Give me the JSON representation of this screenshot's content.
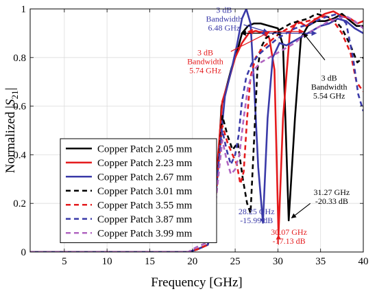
{
  "chart_data": {
    "type": "line",
    "title": "",
    "xlabel": "Frequency [GHz]",
    "ylabel_prefix": "Normalized |",
    "ylabel_sym": "S",
    "ylabel_sub": "21",
    "ylabel_suffix": "|",
    "xlim": [
      1,
      40
    ],
    "ylim": [
      0,
      1
    ],
    "xticks": [
      5,
      10,
      15,
      20,
      25,
      30,
      35,
      40
    ],
    "yticks": [
      0,
      0.2,
      0.4,
      0.6,
      0.8,
      1
    ],
    "ytick_labels": [
      "0",
      "0.2",
      "0.4",
      "0.6",
      "0.8",
      "1"
    ],
    "grid": true,
    "legend_position": "bottom-left",
    "series": [
      {
        "name": "Copper Patch 2.05 mm",
        "color": "#000000",
        "dash": "solid",
        "x": [
          1,
          19.5,
          20.5,
          21.8,
          22.5,
          23.0,
          23.4,
          24.0,
          24.6,
          25.2,
          25.8,
          26.5,
          27.2,
          28.0,
          29.0,
          30.0,
          30.6,
          31.27,
          32.0,
          32.7,
          33.5,
          34.5,
          35.5,
          36.5,
          37.5,
          38.5,
          39.2,
          40
        ],
        "y": [
          0,
          0,
          0.01,
          0.03,
          0.12,
          0.36,
          0.6,
          0.68,
          0.76,
          0.82,
          0.9,
          0.93,
          0.94,
          0.94,
          0.93,
          0.92,
          0.85,
          0.13,
          0.55,
          0.88,
          0.93,
          0.95,
          0.95,
          0.96,
          0.98,
          0.95,
          0.93,
          0.93
        ]
      },
      {
        "name": "Copper Patch 2.23 mm",
        "color": "#e41a1c",
        "dash": "solid",
        "x": [
          1,
          19.5,
          20.5,
          21.8,
          22.5,
          23.0,
          23.5,
          24.2,
          25.0,
          25.8,
          26.6,
          27.4,
          28.2,
          29.0,
          29.6,
          30.07,
          30.6,
          31.4,
          32.3,
          33.3,
          34.5,
          35.5,
          36.5,
          37.5,
          38.5,
          39.3,
          40
        ],
        "y": [
          0,
          0,
          0.01,
          0.03,
          0.13,
          0.4,
          0.62,
          0.7,
          0.8,
          0.86,
          0.9,
          0.91,
          0.9,
          0.88,
          0.75,
          0.07,
          0.55,
          0.9,
          0.95,
          0.93,
          0.96,
          0.98,
          0.99,
          0.97,
          0.96,
          0.94,
          0.95
        ]
      },
      {
        "name": "Copper Patch 2.67 mm",
        "color": "#3a3aa8",
        "dash": "solid",
        "x": [
          1,
          19.5,
          20.5,
          21.8,
          22.5,
          23.2,
          23.8,
          24.5,
          25.2,
          25.8,
          26.3,
          26.8,
          27.2,
          27.7,
          28.25,
          28.8,
          29.4,
          30.2,
          31.0,
          32.0,
          33.0,
          34.0,
          35.0,
          36.0,
          37.0,
          38.0,
          39.0,
          40
        ],
        "y": [
          0,
          0,
          0.01,
          0.03,
          0.14,
          0.42,
          0.64,
          0.74,
          0.85,
          0.96,
          1.0,
          0.94,
          0.7,
          0.35,
          0.12,
          0.55,
          0.8,
          0.86,
          0.85,
          0.87,
          0.89,
          0.91,
          0.93,
          0.94,
          0.96,
          0.95,
          0.92,
          0.9
        ]
      },
      {
        "name": "Copper Patch 3.01 mm",
        "color": "#000000",
        "dash": "dashed",
        "x": [
          1,
          19.5,
          20.5,
          21.8,
          22.5,
          23.0,
          23.5,
          24.1,
          24.7,
          25.3,
          25.9,
          26.4,
          26.8,
          27.2,
          27.6,
          28.0,
          28.6,
          29.5,
          30.5,
          31.5,
          32.5,
          33.5,
          34.5,
          35.5,
          36.5,
          37.5,
          38.5,
          39.3,
          40
        ],
        "y": [
          0,
          0,
          0.01,
          0.03,
          0.12,
          0.35,
          0.56,
          0.48,
          0.42,
          0.45,
          0.3,
          0.2,
          0.16,
          0.45,
          0.75,
          0.84,
          0.88,
          0.9,
          0.92,
          0.94,
          0.95,
          0.96,
          0.98,
          0.97,
          0.96,
          0.92,
          0.85,
          0.78,
          0.8
        ]
      },
      {
        "name": "Copper Patch 3.55 mm",
        "color": "#e41a1c",
        "dash": "dashed",
        "x": [
          1,
          19.5,
          20.5,
          21.8,
          22.5,
          23.0,
          23.5,
          24.1,
          24.7,
          25.2,
          25.6,
          26.0,
          26.4,
          26.8,
          27.4,
          28.2,
          29.2,
          30.2,
          31.2,
          32.3,
          33.5,
          34.5,
          35.5,
          36.5,
          37.5,
          38.5,
          39.2,
          40
        ],
        "y": [
          0,
          0,
          0.01,
          0.03,
          0.12,
          0.34,
          0.52,
          0.45,
          0.4,
          0.36,
          0.28,
          0.33,
          0.55,
          0.72,
          0.8,
          0.84,
          0.87,
          0.9,
          0.92,
          0.94,
          0.95,
          0.96,
          0.97,
          0.95,
          0.9,
          0.82,
          0.7,
          0.66
        ]
      },
      {
        "name": "Copper Patch 3.87 mm",
        "color": "#3a3aa8",
        "dash": "dashed",
        "x": [
          1,
          19.5,
          20.5,
          21.8,
          22.5,
          23.0,
          23.5,
          24.0,
          24.5,
          25.0,
          25.4,
          25.8,
          26.3,
          27.0,
          28.0,
          29.0,
          30.0,
          31.0,
          32.0,
          33.0,
          34.0,
          35.0,
          36.0,
          37.0,
          38.0,
          38.8,
          39.4,
          40
        ],
        "y": [
          0,
          0,
          0.02,
          0.04,
          0.13,
          0.33,
          0.5,
          0.42,
          0.36,
          0.4,
          0.48,
          0.62,
          0.72,
          0.78,
          0.82,
          0.85,
          0.88,
          0.9,
          0.92,
          0.93,
          0.94,
          0.96,
          0.97,
          0.98,
          0.94,
          0.8,
          0.65,
          0.58
        ]
      },
      {
        "name": "Copper Patch 3.99 mm",
        "color": "#b065c0",
        "dash": "dashed",
        "x": [
          1,
          19.5,
          20.5,
          21.8,
          22.5,
          23.0,
          23.5,
          24.0,
          24.5,
          25.0,
          25.5,
          26.0,
          26.5,
          27.2,
          28.0,
          29.0,
          30.0,
          31.0,
          32.0,
          33.0,
          34.0,
          35.0,
          36.0,
          37.0,
          38.0,
          39.0,
          40
        ],
        "y": [
          0,
          0,
          0.02,
          0.04,
          0.13,
          0.3,
          0.46,
          0.38,
          0.32,
          0.34,
          0.4,
          0.55,
          0.68,
          0.75,
          0.78,
          0.8,
          0.82,
          0.84,
          0.86,
          0.89,
          0.91,
          0.93,
          0.95,
          0.96,
          0.97,
          0.95,
          0.92
        ]
      }
    ],
    "bandwidth_arrows": [
      {
        "y": 0.9,
        "x1": 25.7,
        "x2": 30.5,
        "color": "#000000"
      },
      {
        "y": 0.907,
        "x1": 26.5,
        "x2": 33.0,
        "color": "#e41a1c"
      },
      {
        "y": 0.9,
        "x1": 28.0,
        "x2": 34.5,
        "color": "#3a3aa8"
      }
    ],
    "annotations": [
      {
        "color": "#3a3aa8",
        "lines": [
          "3 dB",
          "Bandwidth",
          "6.48 GHz"
        ],
        "x": 23.7,
        "y": 0.985,
        "anchor": "middle",
        "leader": [
          [
            26.0,
            0.935
          ],
          [
            28.8,
            0.905
          ]
        ]
      },
      {
        "color": "#e41a1c",
        "lines": [
          "3 dB",
          "Bandwidth",
          "5.74 GHz"
        ],
        "x": 21.5,
        "y": 0.81,
        "anchor": "middle",
        "leader": [
          [
            24.5,
            0.825
          ],
          [
            29.0,
            0.905
          ]
        ]
      },
      {
        "color": "#000000",
        "lines": [
          "3 dB",
          "Bandwidth",
          "5.54 GHz"
        ],
        "x": 36.0,
        "y": 0.705,
        "anchor": "middle",
        "leader": [
          [
            35.5,
            0.79
          ],
          [
            33.0,
            0.9
          ]
        ]
      },
      {
        "color": "#3a3aa8",
        "lines": [
          "28.25 GHz",
          "-15.99 dB"
        ],
        "x": 27.5,
        "y": 0.155,
        "anchor": "middle",
        "leader": [
          [
            28.1,
            0.16
          ],
          [
            28.25,
            0.12
          ]
        ]
      },
      {
        "color": "#e41a1c",
        "lines": [
          "30.07 GHz",
          "-17.13 dB"
        ],
        "x": 31.3,
        "y": 0.07,
        "anchor": "middle",
        "leader": [
          [
            30.07,
            0.03
          ],
          [
            30.07,
            0.07
          ]
        ]
      },
      {
        "color": "#000000",
        "lines": [
          "31.27 GHz",
          "-20.33 dB"
        ],
        "x": 36.3,
        "y": 0.235,
        "anchor": "middle",
        "leader": [
          [
            33.8,
            0.2
          ],
          [
            31.6,
            0.14
          ]
        ]
      }
    ]
  }
}
